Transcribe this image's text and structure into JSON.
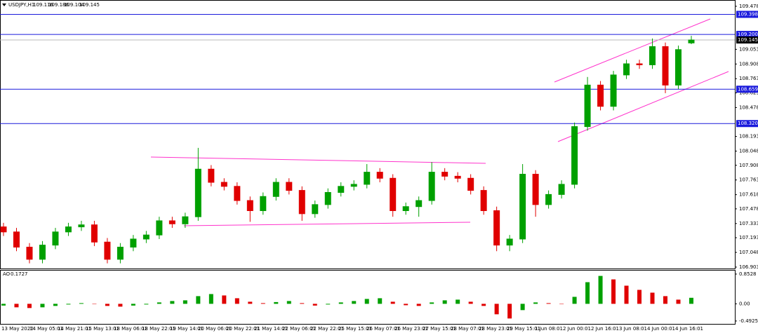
{
  "chart_data": [
    {
      "type": "candlestick",
      "symbol": "USDJPY,H1",
      "open": [
        107.3,
        107.25,
        107.1,
        106.98,
        107.12,
        107.25,
        107.3,
        107.32,
        107.15,
        106.98,
        107.1,
        107.18,
        107.22,
        107.36,
        107.33,
        107.4,
        107.87,
        107.74,
        107.7,
        107.56,
        107.46,
        107.6,
        107.74,
        107.66,
        107.43,
        107.52,
        107.64,
        107.7,
        107.72,
        107.84,
        107.78,
        107.46,
        107.5,
        107.56,
        107.84,
        107.8,
        107.78,
        107.66,
        107.46,
        107.12,
        107.18,
        107.82,
        107.52,
        107.62,
        107.72,
        108.29,
        108.7,
        108.49,
        108.8,
        108.91,
        108.9,
        109.08,
        108.7,
        109.116
      ],
      "high": [
        107.34,
        107.29,
        107.14,
        107.16,
        107.29,
        107.34,
        107.36,
        107.36,
        107.19,
        107.14,
        107.22,
        107.26,
        107.4,
        107.4,
        107.44,
        108.08,
        107.91,
        107.78,
        107.74,
        107.6,
        107.64,
        107.78,
        107.78,
        107.7,
        107.56,
        107.68,
        107.74,
        107.76,
        107.92,
        107.88,
        107.82,
        107.54,
        107.6,
        107.94,
        107.88,
        107.84,
        107.82,
        107.7,
        107.5,
        107.22,
        107.92,
        107.86,
        107.66,
        107.76,
        108.33,
        108.78,
        108.74,
        108.84,
        108.95,
        108.95,
        109.16,
        109.12,
        109.09,
        109.186
      ],
      "low": [
        107.21,
        107.06,
        106.94,
        106.94,
        107.08,
        107.21,
        107.26,
        107.11,
        106.94,
        106.94,
        107.06,
        107.14,
        107.18,
        107.29,
        107.29,
        107.36,
        107.7,
        107.66,
        107.52,
        107.35,
        107.42,
        107.56,
        107.62,
        107.36,
        107.39,
        107.48,
        107.6,
        107.66,
        107.68,
        107.74,
        107.4,
        107.42,
        107.4,
        107.52,
        107.76,
        107.74,
        107.62,
        107.42,
        107.06,
        107.06,
        107.14,
        107.4,
        107.48,
        107.58,
        107.68,
        108.25,
        108.45,
        108.45,
        108.76,
        108.86,
        108.86,
        108.62,
        108.66,
        109.104
      ],
      "close": [
        107.25,
        107.1,
        106.98,
        107.12,
        107.25,
        107.3,
        107.32,
        107.15,
        106.98,
        107.1,
        107.18,
        107.22,
        107.36,
        107.33,
        107.4,
        107.87,
        107.74,
        107.7,
        107.56,
        107.46,
        107.6,
        107.74,
        107.66,
        107.43,
        107.52,
        107.64,
        107.7,
        107.72,
        107.84,
        107.78,
        107.46,
        107.5,
        107.56,
        107.84,
        107.8,
        107.78,
        107.66,
        107.46,
        107.12,
        107.18,
        107.82,
        107.52,
        107.62,
        107.72,
        108.29,
        108.7,
        108.49,
        108.8,
        108.91,
        108.9,
        109.08,
        108.7,
        109.05,
        109.145
      ],
      "up_color": "#00a000",
      "down_color": "#e00000",
      "ylim": [
        106.889,
        109.526
      ],
      "yticks": [
        109.478,
        109.053,
        108.908,
        108.763,
        108.623,
        108.478,
        108.193,
        108.048,
        107.908,
        107.763,
        107.618,
        107.478,
        107.333,
        107.193,
        107.048,
        106.903
      ],
      "levels": [
        {
          "value": 109.398,
          "label": "109.398",
          "color": "#1a1adc"
        },
        {
          "value": 109.2,
          "label": "109.200",
          "color": "#1a1adc"
        },
        {
          "value": 109.145,
          "label": "109.145",
          "color": "#000000"
        },
        {
          "value": 108.659,
          "label": "108.659",
          "color": "#1a1adc"
        },
        {
          "value": 108.32,
          "label": "108.320",
          "color": "#1a1adc"
        }
      ],
      "time_labels": [
        "13 May 2020",
        "14 May 05:01",
        "14 May 21:01",
        "15 May 13:01",
        "18 May 06:01",
        "18 May 22:01",
        "19 May 14:01",
        "20 May 06:01",
        "20 May 22:01",
        "21 May 14:01",
        "22 May 06:01",
        "22 May 22:01",
        "25 May 15:01",
        "26 May 07:01",
        "26 May 23:01",
        "27 May 15:01",
        "28 May 07:01",
        "28 May 23:01",
        "29 May 15:01",
        "1 Jun 08:01",
        "2 Jun 00:01",
        "2 Jun 16:01",
        "3 Jun 08:01",
        "4 Jun 00:01",
        "4 Jun 16:01"
      ]
    },
    {
      "type": "bar",
      "name": "AO",
      "values": [
        -0.05,
        -0.1,
        -0.12,
        -0.1,
        -0.06,
        -0.02,
        0.02,
        0.0,
        -0.06,
        -0.08,
        -0.05,
        -0.02,
        0.04,
        0.08,
        0.1,
        0.22,
        0.28,
        0.24,
        0.16,
        0.06,
        0.02,
        0.05,
        0.08,
        0.02,
        -0.05,
        -0.02,
        0.04,
        0.08,
        0.14,
        0.16,
        0.06,
        -0.04,
        -0.06,
        0.04,
        0.1,
        0.12,
        0.06,
        -0.06,
        -0.3,
        -0.42,
        -0.18,
        0.04,
        0.02,
        0.0,
        0.2,
        0.62,
        0.8,
        0.7,
        0.52,
        0.4,
        0.32,
        0.22,
        0.12,
        0.1727
      ],
      "up_color": "#00a000",
      "down_color": "#e00000",
      "ylim": [
        -0.575,
        0.952
      ],
      "yticks": [
        0.8528,
        {
          "value": 0,
          "label": "0.00"
        },
        -0.4925
      ]
    }
  ]
}
